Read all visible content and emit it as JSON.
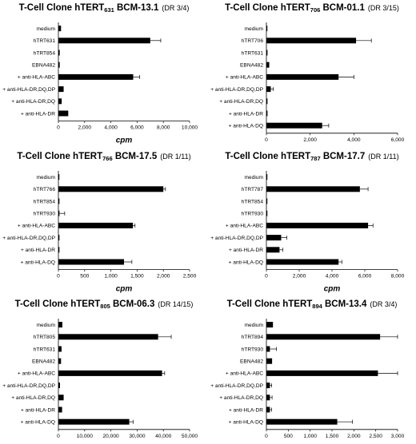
{
  "chart_data": [
    {
      "type": "bar",
      "orientation": "horizontal",
      "title": {
        "prefix": "T-Cell Clone hTERT",
        "subscript": "631",
        "suffix": " BCM-13.1",
        "dr": "(DR 3/4)"
      },
      "categories": [
        "medium",
        "hTRT631",
        "hTRT854",
        "EBNA482",
        "+ anti-HLA-ABC",
        "+ anti-HLA-DR,DQ,DP",
        "+ anti-HLA-DR,DQ",
        "+ anti-HLA-DR"
      ],
      "values": [
        200,
        7000,
        100,
        100,
        5700,
        400,
        250,
        750
      ],
      "errors": [
        0,
        800,
        0,
        0,
        500,
        0,
        0,
        0
      ],
      "xlim": [
        0,
        10000
      ],
      "ticks": [
        "0",
        "2,000",
        "4,000",
        "6,000",
        "8,000",
        "10,000"
      ],
      "xlabel": "cpm"
    },
    {
      "type": "bar",
      "orientation": "horizontal",
      "title": {
        "prefix": "T-Cell Clone hTERT",
        "subscript": "706",
        "suffix": " BCM-01.1",
        "dr": "(DR 3/15)"
      },
      "categories": [
        "medium",
        "hTRT706",
        "hTRT631",
        "EBNA482",
        "+ anti-HLA-ABC",
        "+ anti-HLA-DR,DQ,DP",
        "+ anti-HLA-DR,DQ",
        "+ anti-HLA-DR",
        "+ anti-HLA-DQ"
      ],
      "values": [
        30,
        4100,
        50,
        130,
        3300,
        200,
        50,
        50,
        2550
      ],
      "errors": [
        0,
        700,
        0,
        0,
        700,
        120,
        0,
        0,
        300
      ],
      "xlim": [
        0,
        6000
      ],
      "ticks": [
        "0",
        "2,000",
        "4,000",
        "6,000"
      ],
      "xlabel": "cpm"
    },
    {
      "type": "bar",
      "orientation": "horizontal",
      "title": {
        "prefix": "T-Cell Clone hTERT",
        "subscript": "766",
        "suffix": " BCM-17.5",
        "dr": "(DR 1/11)"
      },
      "categories": [
        "medium",
        "hTRT766",
        "hTRT854",
        "hTRT930",
        "+ anti-HLA-ABC",
        "+ anti-HLA-DR,DQ,DP",
        "+ anti-HLA-DR",
        "+ anti-HLA-DQ"
      ],
      "values": [
        15,
        2000,
        20,
        20,
        1420,
        20,
        20,
        1250
      ],
      "errors": [
        0,
        40,
        0,
        100,
        40,
        0,
        0,
        150
      ],
      "xlim": [
        0,
        2500
      ],
      "ticks": [
        "0",
        "500",
        "1,000",
        "1,500",
        "2,000",
        "2,500"
      ],
      "xlabel": "cpm"
    },
    {
      "type": "bar",
      "orientation": "horizontal",
      "title": {
        "prefix": "T-Cell Clone hTERT",
        "subscript": "787",
        "suffix": " BCM-17.7",
        "dr": "(DR 1/11)"
      },
      "categories": [
        "medium",
        "hTRT787",
        "hTRT854",
        "hTRT930",
        "+ anti-HLA-ABC",
        "+ anti-HLA-DR,DQ,DP",
        "+ anti-HLA-DR",
        "+ anti-HLA-DQ"
      ],
      "values": [
        40,
        5700,
        40,
        40,
        6200,
        900,
        800,
        4400
      ],
      "errors": [
        0,
        500,
        0,
        0,
        300,
        350,
        200,
        200
      ],
      "xlim": [
        0,
        8000
      ],
      "ticks": [
        "0",
        "2,000",
        "4,000",
        "6,000",
        "8,000"
      ],
      "xlabel": "cpm"
    },
    {
      "type": "bar",
      "orientation": "horizontal",
      "title": {
        "prefix": "T-Cell Clone hTERT",
        "subscript": "805",
        "suffix": " BCM-06.3",
        "dr": "(DR 14/15)"
      },
      "categories": [
        "medium",
        "hTRT805",
        "hTRT631",
        "EBNA482",
        "+ anti-HLA-ABC",
        "+ anti-HLA-DR,DQ,DP",
        "+ anti-HLA-DR,DQ",
        "+ anti-HLA-DR",
        "+ anti-HLA-DQ"
      ],
      "values": [
        1500,
        38000,
        1200,
        1000,
        39500,
        600,
        2000,
        1400,
        27000
      ],
      "errors": [
        0,
        5000,
        0,
        0,
        1000,
        0,
        0,
        0,
        1500
      ],
      "xlim": [
        0,
        50000
      ],
      "ticks": [
        "0",
        "10,000",
        "20,000",
        "30,000",
        "40,000",
        "50,000"
      ],
      "xlabel": "cpm"
    },
    {
      "type": "bar",
      "orientation": "horizontal",
      "title": {
        "prefix": "T-Cell Clone hTERT",
        "subscript": "894",
        "suffix": " BCM-13.4",
        "dr": "(DR 3/4)"
      },
      "categories": [
        "medium",
        "hTRT894",
        "hTRT930",
        "EBNA482",
        "+ anti-HLA-ABC",
        "+ anti-HLA-DR,DQ,DP",
        "+ anti-HLA-DR,DQ",
        "+ anti-HLA-DR",
        "+ anti-HLA-DQ"
      ],
      "values": [
        150,
        2600,
        80,
        130,
        2550,
        80,
        80,
        80,
        1620
      ],
      "errors": [
        0,
        400,
        150,
        0,
        450,
        40,
        50,
        40,
        350
      ],
      "xlim": [
        0,
        3000
      ],
      "ticks": [
        "0",
        "500",
        "1,000",
        "1,500",
        "2,000",
        "2,500",
        "3,000"
      ],
      "xlabel": "cpm"
    }
  ]
}
